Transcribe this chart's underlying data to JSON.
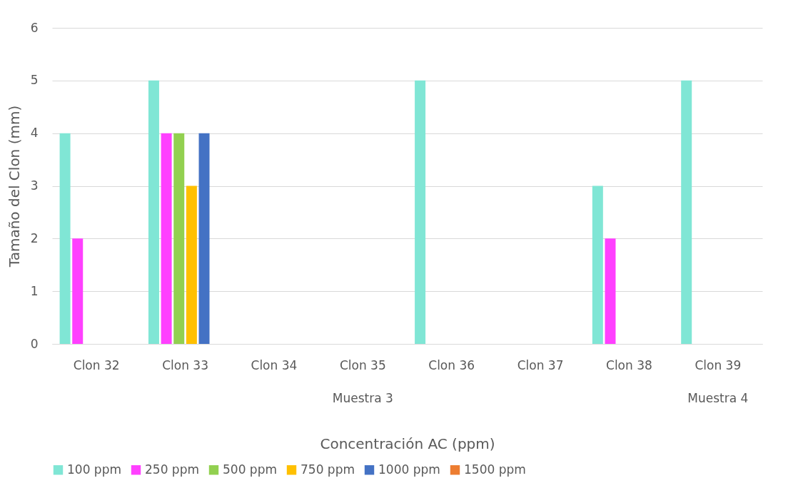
{
  "chart_data": {
    "type": "bar",
    "xlabel": "Concentración AC (ppm)",
    "ylabel": "Tamaño del Clon (mm)",
    "categories": [
      "Clon 32",
      "Clon 33",
      "Clon 34",
      "Clon 35",
      "Clon 36",
      "Clon 37",
      "Clon 38",
      "Clon 39"
    ],
    "series": [
      {
        "name": "100 ppm",
        "color": "#80e6d5",
        "values": [
          4,
          5,
          0,
          0,
          5,
          0,
          3,
          5
        ]
      },
      {
        "name": "250 ppm",
        "color": "#ff40ff",
        "values": [
          2,
          4,
          0,
          0,
          0,
          0,
          2,
          0
        ]
      },
      {
        "name": "500 ppm",
        "color": "#92d050",
        "values": [
          0,
          4,
          0,
          0,
          0,
          0,
          0,
          0
        ]
      },
      {
        "name": "750 ppm",
        "color": "#ffc000",
        "values": [
          0,
          3,
          0,
          0,
          0,
          0,
          0,
          0
        ]
      },
      {
        "name": "1000 ppm",
        "color": "#4472c4",
        "values": [
          0,
          4,
          0,
          0,
          0,
          0,
          0,
          0
        ]
      },
      {
        "name": "1500 ppm",
        "color": "#ed7d31",
        "values": [
          0,
          0,
          0,
          0,
          0,
          0,
          0,
          0
        ]
      }
    ],
    "annotations": [
      "Muestra 3",
      "Muestra 4"
    ],
    "ylim": [
      0,
      6
    ],
    "yticks": [
      0,
      1,
      2,
      3,
      4,
      5,
      6
    ],
    "grid": "y",
    "legend": "bottom"
  }
}
